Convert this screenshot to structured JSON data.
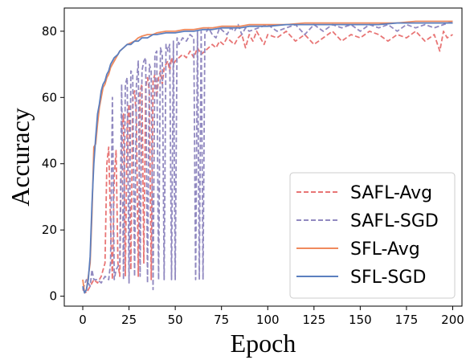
{
  "chart_data": {
    "type": "line",
    "xlabel": "Epoch",
    "ylabel": "Accuracy",
    "xlim": [
      -10,
      205
    ],
    "ylim": [
      -3,
      87
    ],
    "xticks": [
      0,
      25,
      50,
      75,
      100,
      125,
      150,
      175,
      200
    ],
    "yticks": [
      0,
      20,
      40,
      60,
      80
    ],
    "grid": false,
    "legend_position": "lower-right",
    "series": [
      {
        "name": "SAFL-Avg",
        "color": "#e87575",
        "style": "dashed",
        "x": [
          0,
          2,
          4,
          6,
          8,
          10,
          12,
          13,
          14,
          15,
          16,
          17,
          18,
          19,
          20,
          21,
          22,
          23,
          24,
          25,
          26,
          27,
          28,
          29,
          30,
          31,
          32,
          33,
          34,
          35,
          36,
          37,
          38,
          39,
          40,
          41,
          42,
          43,
          44,
          45,
          46,
          47,
          48,
          49,
          50,
          52,
          54,
          56,
          58,
          60,
          62,
          64,
          66,
          68,
          70,
          72,
          74,
          76,
          78,
          80,
          82,
          84,
          86,
          88,
          90,
          92,
          94,
          96,
          98,
          100,
          105,
          110,
          115,
          120,
          125,
          130,
          135,
          140,
          145,
          150,
          155,
          160,
          165,
          170,
          175,
          180,
          185,
          190,
          193,
          195,
          197,
          200
        ],
        "y": [
          2,
          1,
          3,
          5,
          4,
          6,
          10,
          40,
          45,
          22,
          5,
          36,
          44,
          10,
          6,
          50,
          55,
          6,
          52,
          58,
          8,
          60,
          62,
          54,
          6,
          62,
          64,
          10,
          63,
          66,
          62,
          5,
          65,
          67,
          60,
          66,
          68,
          64,
          69,
          70,
          71,
          68,
          72,
          70,
          71,
          72,
          73,
          72,
          74,
          72,
          75,
          73,
          74,
          75,
          76,
          75,
          77,
          76,
          78,
          77,
          76,
          78,
          79,
          75,
          79,
          77,
          80,
          78,
          76,
          79,
          78,
          80,
          77,
          79,
          76,
          78,
          80,
          77,
          79,
          78,
          80,
          79,
          77,
          79,
          78,
          80,
          77,
          79,
          74,
          80,
          78,
          79
        ]
      },
      {
        "name": "SAFL-SGD",
        "color": "#9189c0",
        "style": "dashed",
        "x": [
          0,
          2,
          4,
          5,
          6,
          8,
          10,
          12,
          14,
          15,
          16,
          17,
          18,
          20,
          21,
          22,
          23,
          24,
          25,
          26,
          27,
          28,
          29,
          30,
          31,
          32,
          33,
          34,
          35,
          36,
          37,
          38,
          39,
          40,
          41,
          42,
          43,
          44,
          45,
          46,
          47,
          48,
          49,
          50,
          51,
          52,
          54,
          56,
          58,
          60,
          61,
          62,
          63,
          64,
          65,
          66,
          67,
          68,
          70,
          72,
          74,
          76,
          78,
          80,
          82,
          84,
          86,
          88,
          90,
          95,
          100,
          105,
          110,
          115,
          120,
          125,
          130,
          135,
          140,
          145,
          150,
          155,
          160,
          165,
          170,
          175,
          180,
          185,
          190,
          195,
          200
        ],
        "y": [
          2,
          5,
          3,
          8,
          5,
          5,
          4,
          6,
          5,
          10,
          60,
          5,
          8,
          10,
          64,
          5,
          64,
          66,
          4,
          68,
          67,
          6,
          64,
          71,
          6,
          68,
          71,
          72,
          4,
          70,
          68,
          2,
          73,
          74,
          5,
          75,
          73,
          5,
          76,
          74,
          76,
          5,
          77,
          5,
          78,
          76,
          78,
          77,
          79,
          78,
          5,
          80,
          5,
          80,
          5,
          79,
          80,
          81,
          79,
          78,
          81,
          80,
          79,
          81,
          80,
          82,
          79,
          81,
          80,
          81,
          82,
          80,
          81,
          82,
          79,
          82,
          80,
          82,
          81,
          82,
          80,
          82,
          81,
          82,
          80,
          82,
          81,
          82,
          81,
          82,
          83
        ]
      },
      {
        "name": "SFL-Avg",
        "color": "#f08a5d",
        "style": "solid",
        "x": [
          0,
          1,
          2,
          3,
          4,
          5,
          6,
          7,
          8,
          9,
          10,
          11,
          12,
          13,
          14,
          15,
          16,
          17,
          18,
          19,
          20,
          22,
          24,
          26,
          28,
          30,
          32,
          35,
          38,
          40,
          45,
          50,
          55,
          60,
          65,
          70,
          75,
          80,
          85,
          90,
          95,
          100,
          110,
          120,
          130,
          140,
          150,
          160,
          170,
          180,
          190,
          200
        ],
        "y": [
          5,
          1,
          2,
          6,
          10,
          25,
          45,
          46,
          52,
          57,
          60,
          63,
          64,
          66,
          67,
          69,
          70,
          71,
          72,
          73,
          74,
          75,
          76,
          76.5,
          77,
          78,
          78.5,
          79,
          79,
          79.5,
          80,
          80,
          80.5,
          80.5,
          81,
          81,
          81.5,
          81.5,
          81.5,
          82,
          82,
          82,
          82,
          82.5,
          82.5,
          82.5,
          82.5,
          82.5,
          82.5,
          83,
          83,
          83
        ]
      },
      {
        "name": "SFL-SGD",
        "color": "#5b7fbf",
        "style": "solid",
        "x": [
          0,
          1,
          2,
          3,
          4,
          5,
          6,
          7,
          8,
          9,
          10,
          11,
          12,
          13,
          14,
          15,
          16,
          17,
          18,
          19,
          20,
          22,
          24,
          26,
          28,
          30,
          32,
          35,
          38,
          40,
          45,
          50,
          55,
          60,
          65,
          70,
          75,
          80,
          85,
          90,
          95,
          100,
          110,
          120,
          130,
          140,
          150,
          160,
          170,
          180,
          190,
          200
        ],
        "y": [
          3,
          1,
          2,
          5,
          12,
          28,
          40,
          48,
          55,
          58,
          62,
          64,
          65,
          67,
          68,
          70,
          71,
          72,
          72.5,
          73,
          74,
          75,
          76,
          76,
          77,
          77,
          78,
          78,
          79,
          79,
          79.5,
          79.5,
          80,
          80,
          80.5,
          80.5,
          81,
          81,
          81,
          81.5,
          81.5,
          81.5,
          82,
          82,
          82,
          82,
          82,
          82,
          82.5,
          82.5,
          82.5,
          82.5
        ]
      }
    ]
  }
}
